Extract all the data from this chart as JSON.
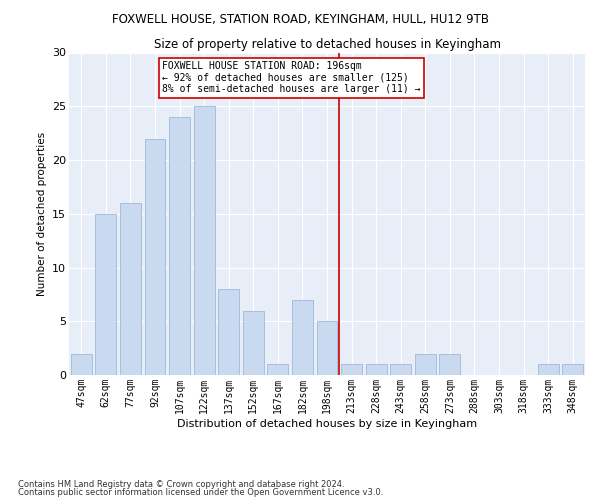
{
  "title1": "FOXWELL HOUSE, STATION ROAD, KEYINGHAM, HULL, HU12 9TB",
  "title2": "Size of property relative to detached houses in Keyingham",
  "xlabel": "Distribution of detached houses by size in Keyingham",
  "ylabel": "Number of detached properties",
  "categories": [
    "47sqm",
    "62sqm",
    "77sqm",
    "92sqm",
    "107sqm",
    "122sqm",
    "137sqm",
    "152sqm",
    "167sqm",
    "182sqm",
    "198sqm",
    "213sqm",
    "228sqm",
    "243sqm",
    "258sqm",
    "273sqm",
    "288sqm",
    "303sqm",
    "318sqm",
    "333sqm",
    "348sqm"
  ],
  "values": [
    2,
    15,
    16,
    22,
    24,
    25,
    8,
    6,
    1,
    7,
    5,
    1,
    1,
    1,
    2,
    2,
    0,
    0,
    0,
    1,
    1
  ],
  "bar_color": "#c9d9f0",
  "bar_edge_color": "#a0b8d8",
  "vline_index": 10.5,
  "vline_color": "#cc0000",
  "annotation_title": "FOXWELL HOUSE STATION ROAD: 196sqm",
  "annotation_line1": "← 92% of detached houses are smaller (125)",
  "annotation_line2": "8% of semi-detached houses are larger (11) →",
  "annotation_box_color": "#cc0000",
  "ylim": [
    0,
    30
  ],
  "yticks": [
    0,
    5,
    10,
    15,
    20,
    25,
    30
  ],
  "background_color": "#e8eef8",
  "footnote1": "Contains HM Land Registry data © Crown copyright and database right 2024.",
  "footnote2": "Contains public sector information licensed under the Open Government Licence v3.0."
}
